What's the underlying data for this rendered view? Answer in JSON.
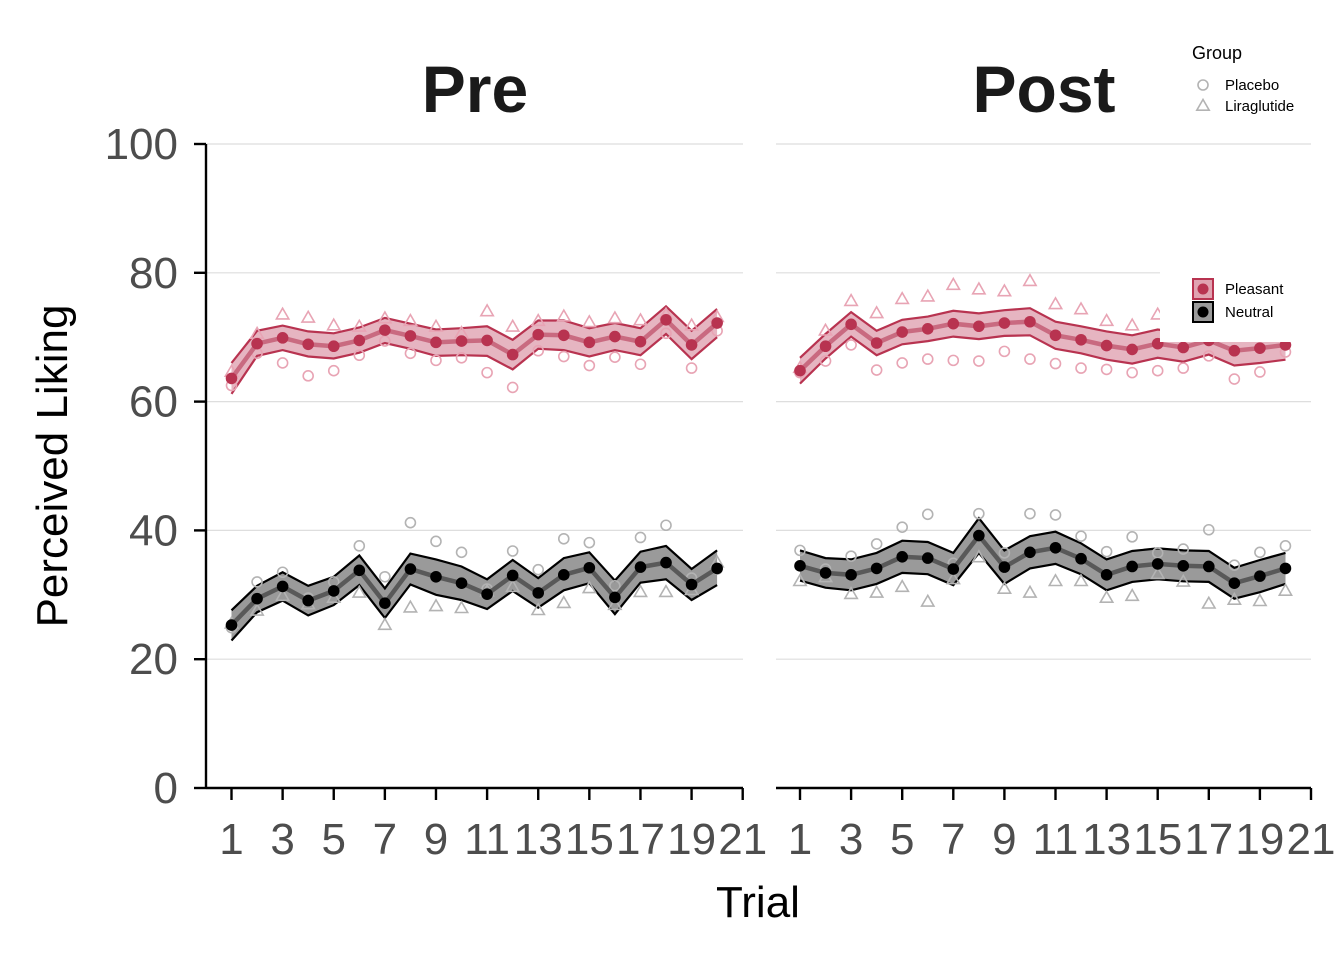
{
  "chart_data": {
    "type": "line",
    "ylabel": "Perceived Liking",
    "xlabel": "Trial",
    "ylim": [
      0,
      100
    ],
    "yticks": [
      "0",
      "20",
      "40",
      "60",
      "80",
      "100"
    ],
    "xlim": [
      0.5,
      21
    ],
    "xticks": [
      "1",
      "3",
      "5",
      "7",
      "9",
      "11",
      "13",
      "15",
      "17",
      "19",
      "21"
    ],
    "grid": "horizontal major",
    "legend_group": {
      "title": "Group",
      "entries": [
        {
          "label": "Placebo",
          "shape": "circle"
        },
        {
          "label": "Liraglutide",
          "shape": "triangle"
        }
      ],
      "placement": "top-right"
    },
    "legend_condition": {
      "entries": [
        {
          "label": "Pleasant",
          "color": "#b83350"
        },
        {
          "label": "Neutral",
          "color": "#000000"
        }
      ],
      "placement": "right"
    },
    "colors": {
      "pleasant": "#b83350",
      "pleasant_light": "#e8a4b4",
      "neutral": "#000000",
      "neutral_light": "#b3b3b3"
    },
    "panels": [
      {
        "title": "Pre",
        "series": [
          {
            "condition": "Pleasant",
            "x": [
              1,
              2,
              3,
              4,
              5,
              6,
              7,
              8,
              9,
              10,
              11,
              12,
              13,
              14,
              15,
              16,
              17,
              18,
              19,
              20
            ],
            "mean": [
              63.6,
              69.0,
              69.9,
              68.9,
              68.6,
              69.5,
              71.1,
              70.2,
              69.2,
              69.4,
              69.5,
              67.3,
              70.4,
              70.3,
              69.2,
              70.1,
              69.3,
              72.7,
              68.8,
              72.2
            ],
            "lower": [
              61.2,
              67.1,
              68.0,
              67.0,
              66.7,
              67.6,
              69.1,
              68.2,
              67.1,
              67.2,
              67.1,
              65.0,
              68.2,
              68.0,
              67.0,
              68.0,
              67.2,
              70.5,
              66.6,
              70.0
            ],
            "upper": [
              66.0,
              71.0,
              71.8,
              70.9,
              70.6,
              71.5,
              73.0,
              72.1,
              71.2,
              71.4,
              71.7,
              69.6,
              72.6,
              72.6,
              71.4,
              72.2,
              71.4,
              74.8,
              71.0,
              74.4
            ],
            "placebo": [
              62.5,
              67.5,
              66.0,
              64.0,
              64.8,
              67.2,
              69.4,
              67.5,
              66.4,
              66.8,
              64.5,
              62.2,
              67.9,
              67.0,
              65.6,
              66.9,
              65.8,
              70.6,
              65.2,
              71.0
            ],
            "liraglutide": [
              64.6,
              70.5,
              73.5,
              73.0,
              71.8,
              71.6,
              72.9,
              72.5,
              71.6,
              70.6,
              74.0,
              71.6,
              72.5,
              73.2,
              72.3,
              72.9,
              72.6,
              73.5,
              71.8,
              73.1
            ]
          },
          {
            "condition": "Neutral",
            "x": [
              1,
              2,
              3,
              4,
              5,
              6,
              7,
              8,
              9,
              10,
              11,
              12,
              13,
              14,
              15,
              16,
              17,
              18,
              19,
              20
            ],
            "mean": [
              25.3,
              29.4,
              31.3,
              29.1,
              30.6,
              33.8,
              28.7,
              34.0,
              32.8,
              31.8,
              30.1,
              33.0,
              30.3,
              33.1,
              34.2,
              29.6,
              34.3,
              35.0,
              31.6,
              34.1
            ],
            "lower": [
              22.9,
              27.3,
              29.1,
              26.8,
              28.4,
              31.5,
              26.4,
              31.6,
              30.0,
              29.2,
              27.8,
              30.6,
              28.0,
              30.7,
              31.8,
              27.0,
              31.9,
              32.4,
              29.2,
              31.5
            ],
            "upper": [
              27.6,
              31.4,
              33.5,
              31.4,
              32.8,
              36.1,
              31.0,
              36.4,
              35.5,
              34.4,
              32.4,
              35.4,
              32.6,
              35.7,
              36.6,
              32.2,
              36.7,
              37.6,
              34.0,
              36.9
            ],
            "placebo": [
              24.9,
              32.0,
              33.5,
              29.5,
              32.0,
              37.6,
              32.8,
              41.2,
              38.3,
              36.6,
              30.9,
              36.8,
              33.9,
              38.7,
              38.1,
              31.4,
              38.9,
              40.8,
              32.6,
              34.0
            ],
            "liraglutide": [
              25.5,
              27.5,
              29.8,
              28.5,
              29.5,
              30.3,
              25.3,
              28.0,
              28.2,
              27.9,
              30.5,
              31.2,
              27.6,
              28.7,
              31.0,
              28.4,
              30.4,
              30.4,
              30.7,
              35.0
            ]
          }
        ]
      },
      {
        "title": "Post",
        "series": [
          {
            "condition": "Pleasant",
            "x": [
              1,
              2,
              3,
              4,
              5,
              6,
              7,
              8,
              9,
              10,
              11,
              12,
              13,
              14,
              15,
              16,
              17,
              18,
              19,
              20
            ],
            "mean": [
              64.8,
              68.6,
              72.0,
              69.1,
              70.8,
              71.3,
              72.1,
              71.7,
              72.2,
              72.4,
              70.3,
              69.6,
              68.7,
              68.1,
              69.0,
              68.4,
              69.5,
              67.9,
              68.3,
              68.8
            ],
            "lower": [
              62.8,
              66.7,
              70.1,
              67.2,
              68.9,
              69.4,
              70.1,
              69.7,
              70.2,
              70.3,
              68.2,
              67.5,
              66.5,
              65.9,
              66.8,
              66.2,
              67.3,
              65.6,
              66.0,
              66.5
            ],
            "upper": [
              66.8,
              70.5,
              73.9,
              71.0,
              72.7,
              73.2,
              74.1,
              73.7,
              74.2,
              74.5,
              72.4,
              71.7,
              70.9,
              70.3,
              71.2,
              70.6,
              71.7,
              70.2,
              70.6,
              71.1
            ],
            "placebo": [
              64.5,
              66.3,
              68.8,
              64.9,
              66.0,
              66.6,
              66.4,
              66.3,
              67.8,
              66.6,
              65.9,
              65.2,
              65.0,
              64.5,
              64.8,
              65.2,
              67.1,
              63.5,
              64.6,
              67.7
            ],
            "liraglutide": [
              65.2,
              71.0,
              75.6,
              73.7,
              75.9,
              76.3,
              78.1,
              77.4,
              77.1,
              78.7,
              75.1,
              74.3,
              72.5,
              71.8,
              73.5,
              71.9,
              72.5,
              72.4,
              72.1,
              70.3
            ]
          },
          {
            "condition": "Neutral",
            "x": [
              1,
              2,
              3,
              4,
              5,
              6,
              7,
              8,
              9,
              10,
              11,
              12,
              13,
              14,
              15,
              16,
              17,
              18,
              19,
              20
            ],
            "mean": [
              34.5,
              33.4,
              33.1,
              34.1,
              35.9,
              35.7,
              34.0,
              39.2,
              34.3,
              36.6,
              37.3,
              35.6,
              33.1,
              34.4,
              34.8,
              34.5,
              34.4,
              31.8,
              32.9,
              34.1
            ],
            "lower": [
              32.2,
              31.1,
              30.7,
              31.7,
              33.4,
              33.2,
              31.5,
              36.5,
              31.7,
              34.1,
              34.8,
              33.2,
              30.7,
              32.0,
              32.4,
              32.1,
              32.0,
              29.4,
              30.4,
              31.7
            ],
            "upper": [
              36.9,
              35.7,
              35.5,
              36.5,
              38.4,
              38.2,
              36.5,
              41.9,
              36.9,
              39.1,
              39.8,
              38.0,
              35.5,
              36.8,
              37.2,
              36.9,
              36.8,
              34.2,
              35.4,
              36.5
            ],
            "placebo": [
              36.9,
              34.0,
              36.0,
              37.9,
              40.5,
              42.5,
              34.9,
              42.6,
              36.5,
              42.6,
              42.4,
              39.1,
              36.7,
              39.0,
              36.5,
              37.1,
              40.1,
              34.6,
              36.6,
              37.6
            ],
            "liraglutide": [
              32.1,
              32.7,
              30.1,
              30.3,
              31.2,
              28.9,
              32.4,
              35.8,
              30.9,
              30.3,
              32.1,
              32.1,
              29.5,
              29.8,
              33.2,
              32.0,
              28.6,
              29.2,
              29.0,
              30.6
            ]
          }
        ]
      }
    ]
  }
}
